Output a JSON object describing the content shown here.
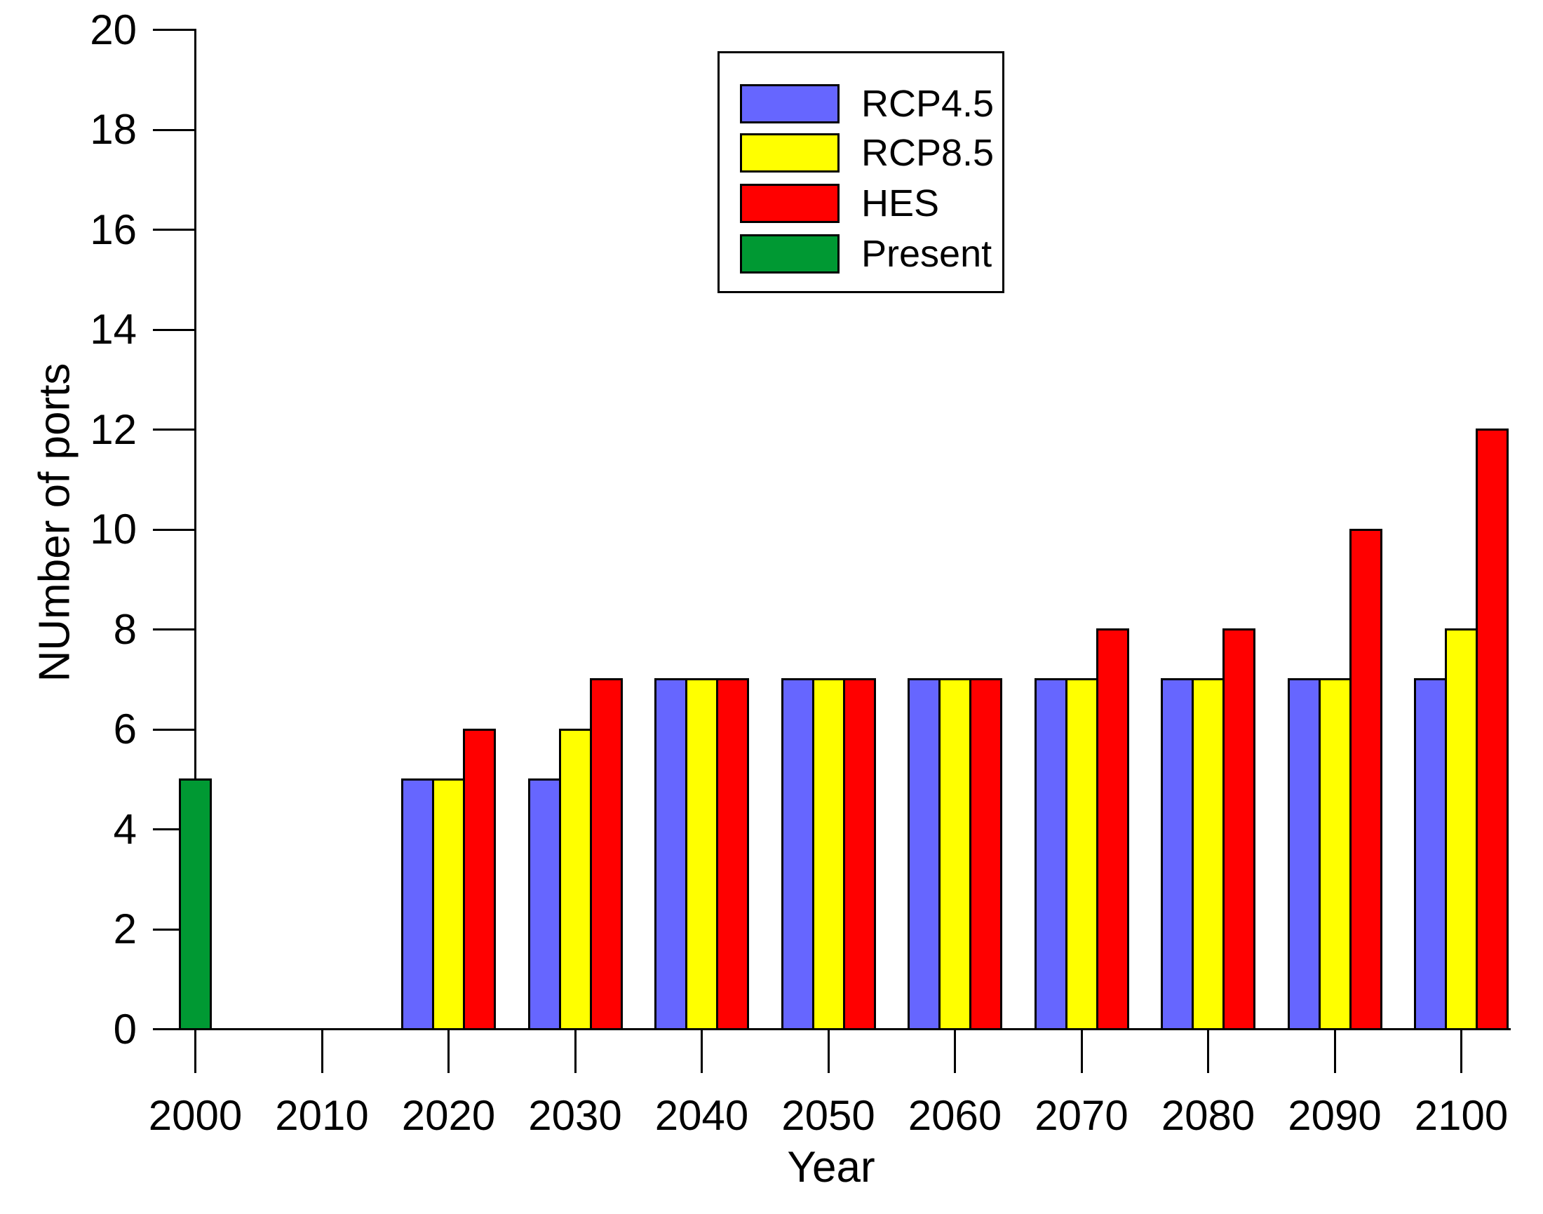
{
  "chart_data": {
    "type": "bar",
    "title": "",
    "xlabel": "Year",
    "ylabel": "NUmber of ports",
    "ylim": [
      0,
      20
    ],
    "ytick_step": 2,
    "grid": false,
    "legend_position": "top-center-inside",
    "categories": [
      2000,
      2010,
      2020,
      2030,
      2040,
      2050,
      2060,
      2070,
      2080,
      2090,
      2100
    ],
    "x_tick_labels": [
      "2000",
      "2010",
      "2020",
      "2030",
      "2040",
      "2050",
      "2060",
      "2070",
      "2080",
      "2090",
      "2100"
    ],
    "y_tick_labels": [
      "0",
      "2",
      "4",
      "6",
      "8",
      "10",
      "12",
      "14",
      "16",
      "18",
      "20"
    ],
    "series": [
      {
        "name": "RCP4.5",
        "color": "#6666FF",
        "values": [
          null,
          null,
          5,
          5,
          7,
          7,
          7,
          7,
          7,
          7,
          7
        ]
      },
      {
        "name": "RCP8.5",
        "color": "#FFFF00",
        "values": [
          null,
          null,
          5,
          6,
          7,
          7,
          7,
          7,
          7,
          7,
          8
        ]
      },
      {
        "name": "HES",
        "color": "#FF0000",
        "values": [
          null,
          null,
          6,
          7,
          7,
          7,
          7,
          8,
          8,
          10,
          12
        ]
      },
      {
        "name": "Present",
        "color": "#009933",
        "values": [
          5,
          null,
          null,
          null,
          null,
          null,
          null,
          null,
          null,
          null,
          null
        ]
      }
    ],
    "legend": [
      "RCP4.5",
      "RCP8.5",
      "HES",
      "Present"
    ],
    "bar_outline_color": "#000000",
    "axis_color": "#000000"
  }
}
